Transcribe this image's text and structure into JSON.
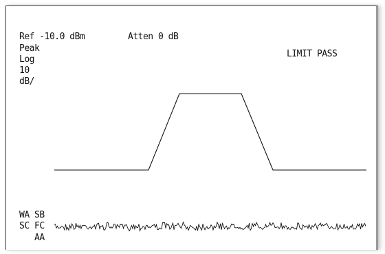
{
  "display": {
    "ref_level": "Ref -10.0 dBm",
    "attenuation": "Atten 0 dB",
    "detector": "Peak",
    "scale_type": "Log",
    "scale_value": "10",
    "scale_unit": "dB/",
    "limit_status": "LIMIT PASS",
    "annotations": {
      "wa": "WA",
      "sb": "SB",
      "sc": "SC",
      "fc": "FC",
      "aa": "AA"
    }
  },
  "colors": {
    "trace": "#111111",
    "background": "#ffffff"
  }
}
